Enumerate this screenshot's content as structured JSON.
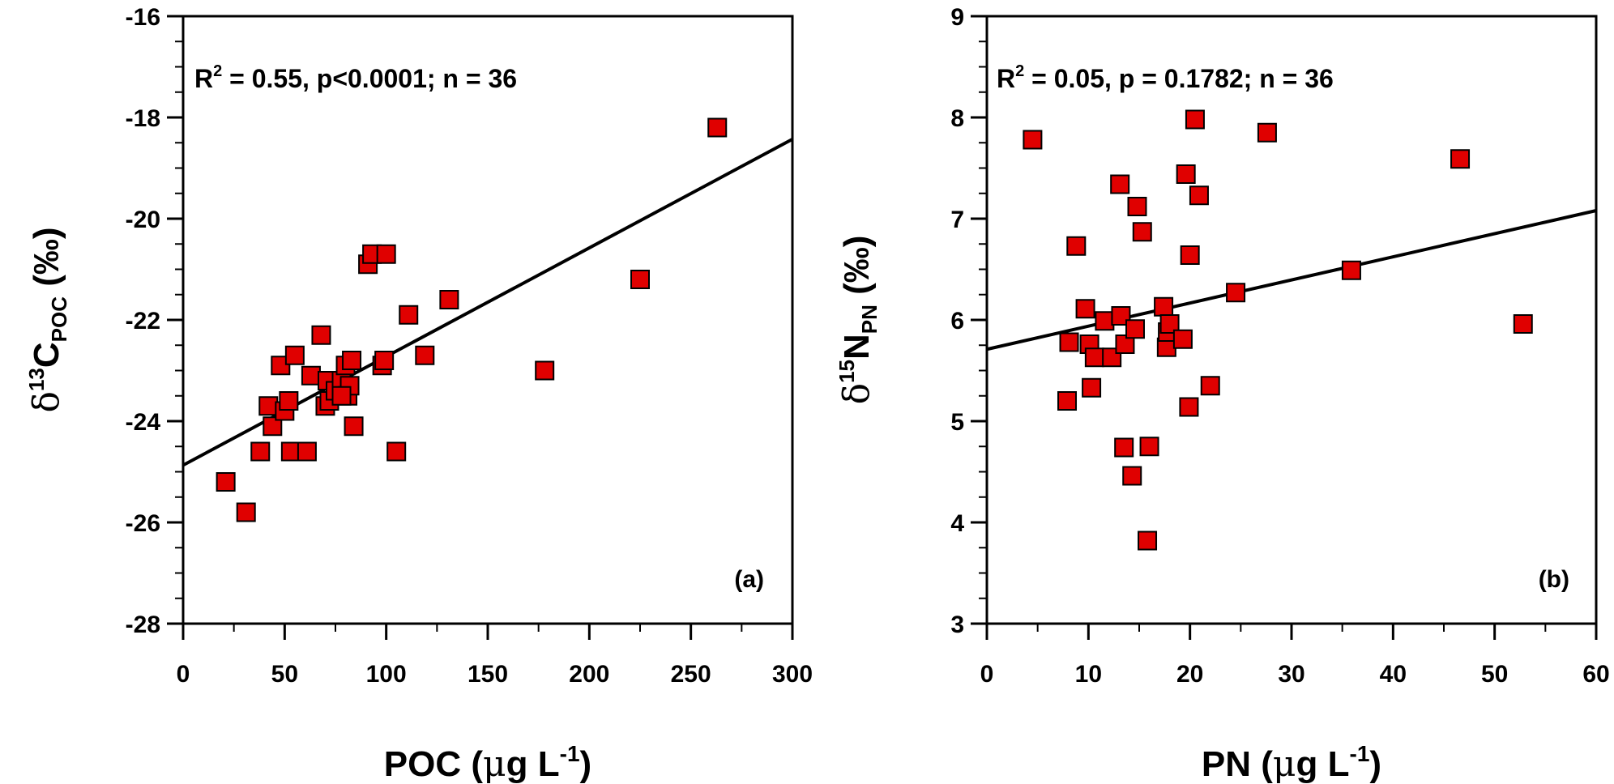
{
  "chart_data": [
    {
      "type": "scatter",
      "panel_label": "(a)",
      "annotation": {
        "r2_prefix": "R",
        "r2_sup": "2",
        "text": " = 0.55, p<0.0001; n = 36"
      },
      "xlabel": {
        "main": "POC (",
        "mu": "μ",
        "unit": "g L",
        "sup": "-1",
        "close": ")"
      },
      "ylabel": {
        "delta": "δ",
        "sup": "13",
        "main": "C",
        "sub": "POC",
        "unit": " (‰)"
      },
      "xlim": [
        0,
        300
      ],
      "ylim": [
        -28,
        -16
      ],
      "xticks": [
        0,
        50,
        100,
        150,
        200,
        250,
        300
      ],
      "yticks": [
        -28,
        -26,
        -24,
        -22,
        -20,
        -18,
        -16
      ],
      "x_minor_step": 25,
      "y_minor_step": 0.5,
      "marker_color": "#e00000",
      "line_color": "#000000",
      "points": [
        [
          21,
          -25.2
        ],
        [
          31,
          -25.8
        ],
        [
          38,
          -24.6
        ],
        [
          42,
          -23.7
        ],
        [
          44,
          -24.1
        ],
        [
          48,
          -22.9
        ],
        [
          50,
          -23.8
        ],
        [
          52,
          -23.6
        ],
        [
          53,
          -24.6
        ],
        [
          55,
          -22.7
        ],
        [
          61,
          -24.6
        ],
        [
          63,
          -23.1
        ],
        [
          68,
          -22.3
        ],
        [
          70,
          -23.7
        ],
        [
          71,
          -23.2
        ],
        [
          72,
          -23.6
        ],
        [
          75,
          -23.4
        ],
        [
          78,
          -23.2
        ],
        [
          80,
          -22.9
        ],
        [
          81,
          -23.5
        ],
        [
          82,
          -23.3
        ],
        [
          83,
          -22.8
        ],
        [
          84,
          -24.1
        ],
        [
          91,
          -20.9
        ],
        [
          93,
          -20.7
        ],
        [
          98,
          -22.9
        ],
        [
          99,
          -22.8
        ],
        [
          100,
          -20.7
        ],
        [
          105,
          -24.6
        ],
        [
          111,
          -21.9
        ],
        [
          119,
          -22.7
        ],
        [
          131,
          -21.6
        ],
        [
          178,
          -23.0
        ],
        [
          225,
          -21.2
        ],
        [
          263,
          -18.2
        ],
        [
          78,
          -23.5
        ]
      ],
      "fit_line": {
        "x": [
          0,
          300
        ],
        "y": [
          -24.87,
          -18.43
        ]
      }
    },
    {
      "type": "scatter",
      "panel_label": "(b)",
      "annotation": {
        "r2_prefix": "R",
        "r2_sup": "2",
        "text": " = 0.05, p = 0.1782; n = 36"
      },
      "xlabel": {
        "main": "PN (",
        "mu": "μ",
        "unit": "g L",
        "sup": "-1",
        "close": ")"
      },
      "ylabel": {
        "delta": "δ",
        "sup": "15",
        "main": "N",
        "sub": "PN",
        "unit": " (‰)"
      },
      "xlim": [
        0,
        60
      ],
      "ylim": [
        3,
        9
      ],
      "xticks": [
        0,
        10,
        20,
        30,
        40,
        50,
        60
      ],
      "yticks": [
        3,
        4,
        5,
        6,
        7,
        8,
        9
      ],
      "x_minor_step": 5,
      "y_minor_step": 0.25,
      "marker_color": "#e00000",
      "line_color": "#000000",
      "points": [
        [
          4.5,
          7.78
        ],
        [
          7.9,
          5.2
        ],
        [
          8.1,
          5.78
        ],
        [
          8.8,
          6.73
        ],
        [
          9.7,
          6.11
        ],
        [
          10.1,
          5.76
        ],
        [
          10.3,
          5.33
        ],
        [
          10.6,
          5.63
        ],
        [
          11.6,
          5.99
        ],
        [
          12.3,
          5.63
        ],
        [
          13.1,
          7.34
        ],
        [
          13.2,
          6.04
        ],
        [
          13.5,
          4.74
        ],
        [
          13.6,
          5.76
        ],
        [
          14.3,
          4.46
        ],
        [
          14.6,
          5.91
        ],
        [
          14.8,
          7.12
        ],
        [
          15.3,
          6.87
        ],
        [
          15.8,
          3.82
        ],
        [
          16.0,
          4.75
        ],
        [
          17.4,
          6.13
        ],
        [
          17.7,
          5.73
        ],
        [
          17.8,
          5.88
        ],
        [
          18.0,
          5.96
        ],
        [
          19.3,
          5.81
        ],
        [
          19.6,
          7.44
        ],
        [
          19.9,
          5.14
        ],
        [
          20.0,
          6.64
        ],
        [
          20.5,
          7.98
        ],
        [
          20.9,
          7.23
        ],
        [
          22.0,
          5.35
        ],
        [
          24.5,
          6.27
        ],
        [
          27.6,
          7.85
        ],
        [
          35.9,
          6.49
        ],
        [
          46.6,
          7.59
        ],
        [
          52.8,
          5.96
        ]
      ],
      "fit_line": {
        "x": [
          0,
          60
        ],
        "y": [
          5.71,
          7.08
        ]
      }
    }
  ]
}
